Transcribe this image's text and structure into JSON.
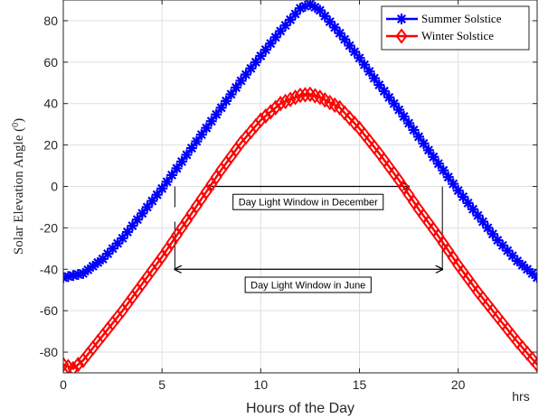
{
  "chart_data": {
    "type": "line",
    "title": "",
    "xlabel": "Hours of the Day",
    "ylabel": "Solar Elevation Angle (",
    "ylabel_sup": "0",
    "ylabel_close": ")",
    "x_unit": "hrs",
    "xlim": [
      0,
      24
    ],
    "ylim": [
      -90,
      90
    ],
    "xticks": [
      0,
      5,
      10,
      15,
      20
    ],
    "xtick_labels": [
      "0",
      "5",
      "10",
      "15",
      "20"
    ],
    "yticks": [
      -80,
      -60,
      -40,
      -20,
      0,
      20,
      40,
      60,
      80
    ],
    "ytick_labels": [
      "-80",
      "-60",
      "-40",
      "-20",
      "0",
      "20",
      "40",
      "60",
      "80"
    ],
    "grid": true,
    "legend_position": "top-right",
    "series": [
      {
        "name": "Summer Solstice",
        "color": "#0000ff",
        "marker": "asterisk",
        "points": [
          [
            0,
            -44
          ],
          [
            1,
            -42
          ],
          [
            2,
            -35
          ],
          [
            3,
            -25
          ],
          [
            4,
            -13
          ],
          [
            5,
            -1
          ],
          [
            6,
            12
          ],
          [
            7,
            25
          ],
          [
            8,
            38
          ],
          [
            9,
            51
          ],
          [
            10,
            63
          ],
          [
            11,
            75
          ],
          [
            12,
            86
          ],
          [
            12.5,
            88
          ],
          [
            13,
            85
          ],
          [
            14,
            74
          ],
          [
            15,
            62
          ],
          [
            16,
            49
          ],
          [
            17,
            37
          ],
          [
            18,
            24
          ],
          [
            19,
            11
          ],
          [
            20,
            -2
          ],
          [
            21,
            -14
          ],
          [
            22,
            -26
          ],
          [
            23,
            -36
          ],
          [
            24,
            -44
          ]
        ]
      },
      {
        "name": "Winter Solstice",
        "color": "#ff0000",
        "marker": "diamond",
        "points": [
          [
            0,
            -86
          ],
          [
            0.5,
            -88
          ],
          [
            1,
            -84
          ],
          [
            2,
            -72
          ],
          [
            3,
            -60
          ],
          [
            4,
            -47
          ],
          [
            5,
            -34
          ],
          [
            6,
            -20
          ],
          [
            7,
            -6
          ],
          [
            8,
            8
          ],
          [
            9,
            21
          ],
          [
            10,
            32
          ],
          [
            11,
            40
          ],
          [
            12,
            44
          ],
          [
            12.5,
            44.5
          ],
          [
            13,
            43
          ],
          [
            14,
            38
          ],
          [
            15,
            28
          ],
          [
            16,
            16
          ],
          [
            17,
            3
          ],
          [
            18,
            -11
          ],
          [
            19,
            -24
          ],
          [
            20,
            -38
          ],
          [
            21,
            -51
          ],
          [
            22,
            -63
          ],
          [
            23,
            -75
          ],
          [
            24,
            -86
          ]
        ]
      }
    ],
    "annotations": [
      {
        "text": "Day Light Window in December",
        "x_start": 7.3,
        "x_end": 17.5,
        "arrow_y": 0,
        "box_center_x": 12.4,
        "box_center_y": -7.5,
        "vlines": [
          {
            "x": 5.65,
            "y_from": -10,
            "y_to": 0
          }
        ]
      },
      {
        "text": "Day Light Window in June",
        "x_start": 5.65,
        "x_end": 19.2,
        "arrow_y": -40,
        "box_center_x": 12.4,
        "box_center_y": -47.5,
        "vlines": [
          {
            "x": 5.65,
            "y_from": -40,
            "y_to": -17
          },
          {
            "x": 19.2,
            "y_from": -40,
            "y_to": 0
          }
        ]
      }
    ]
  }
}
